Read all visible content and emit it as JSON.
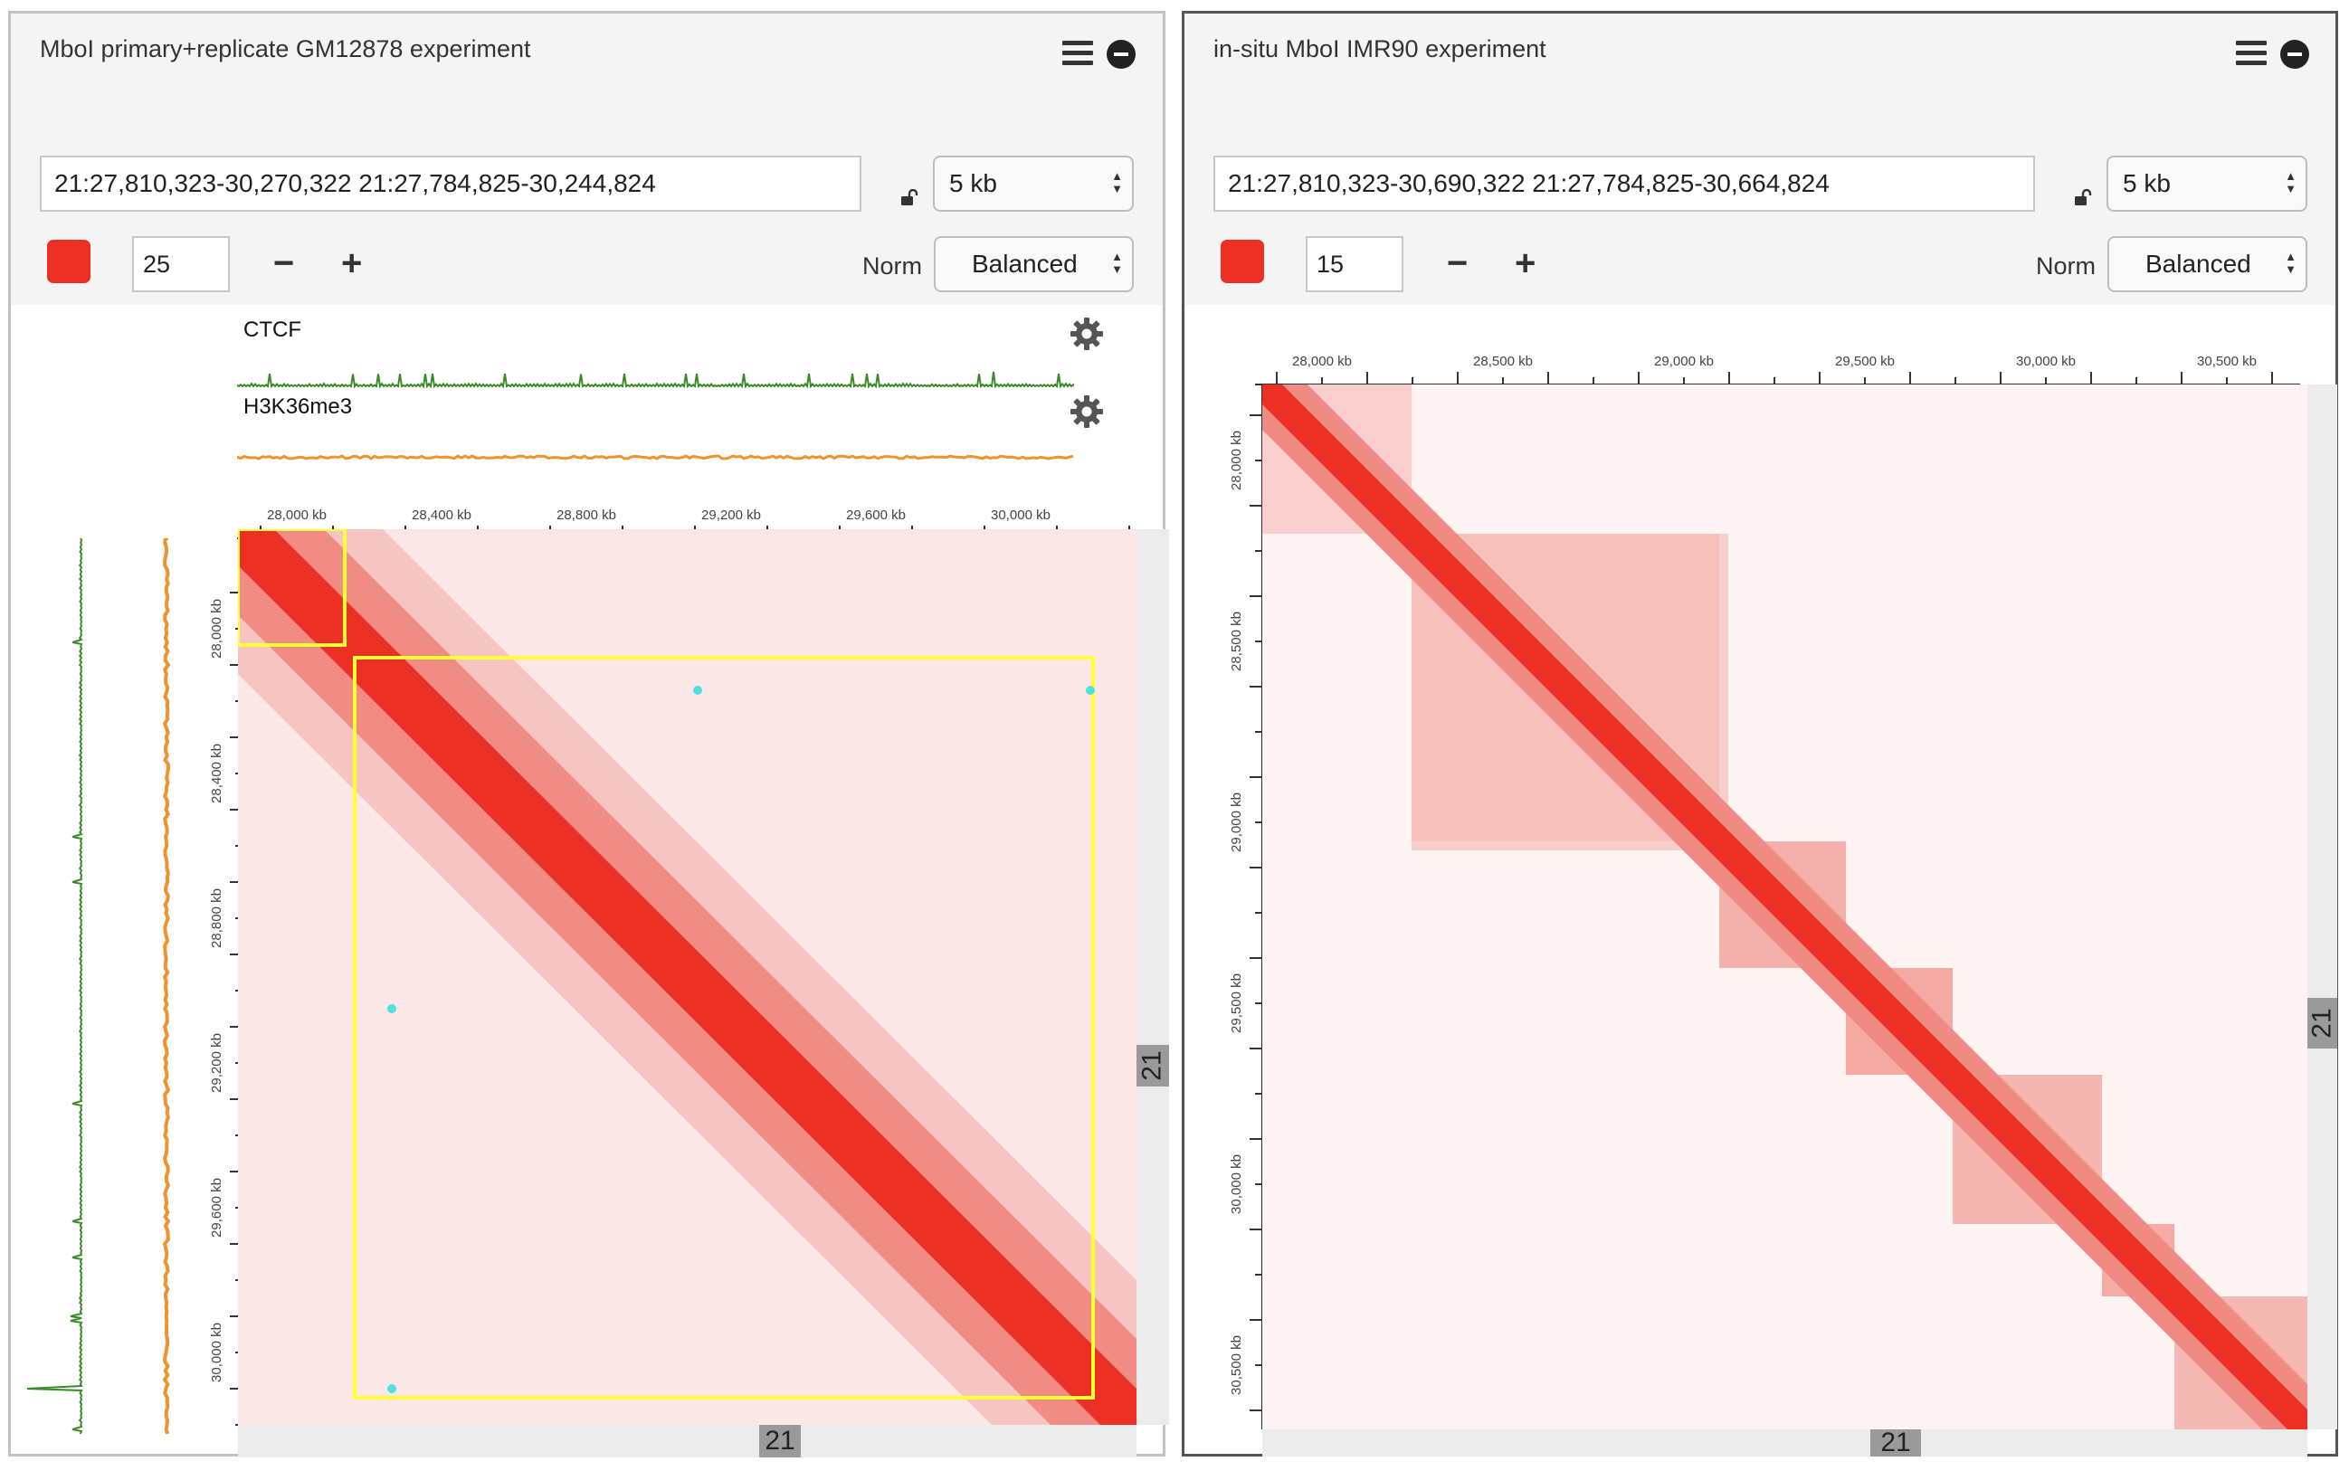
{
  "left_panel": {
    "title": "MboI primary+replicate GM12878 experiment",
    "icons": [
      "menu-icon",
      "minus-circle-icon"
    ],
    "locus": "21:27,810,323-30,270,322 21:27,784,825-30,244,824",
    "resolution": "5 kb",
    "color_swatch": "#ed3024",
    "color_threshold": "25",
    "norm_label": "Norm",
    "norm_value": "Balanced",
    "tracks": [
      {
        "name": "CTCF",
        "color": "#3a8a2a"
      },
      {
        "name": "H3K36me3",
        "color": "#f0922e"
      }
    ],
    "x_ticks": [
      "28,000 kb",
      "28,400 kb",
      "28,800 kb",
      "29,200 kb",
      "29,600 kb",
      "30,000 kb"
    ],
    "y_ticks": [
      "28,000 kb",
      "28,400 kb",
      "28,800 kb",
      "29,200 kb",
      "29,600 kb",
      "30,000 kb"
    ],
    "chromosome_x": "21",
    "chromosome_y": "21"
  },
  "right_panel": {
    "title": "in-situ MboI IMR90 experiment",
    "icons": [
      "menu-icon",
      "minus-circle-icon"
    ],
    "locus": "21:27,810,323-30,690,322 21:27,784,825-30,664,824",
    "resolution": "5 kb",
    "color_swatch": "#ed3024",
    "color_threshold": "15",
    "norm_label": "Norm",
    "norm_value": "Balanced",
    "x_ticks": [
      "28,000 kb",
      "28,500 kb",
      "29,000 kb",
      "29,500 kb",
      "30,000 kb",
      "30,500 kb"
    ],
    "y_ticks": [
      "28,000 kb",
      "28,500 kb",
      "29,000 kb",
      "29,500 kb",
      "30,000 kb",
      "30,500 kb"
    ],
    "chromosome_x": "21",
    "chromosome_y": "21"
  }
}
